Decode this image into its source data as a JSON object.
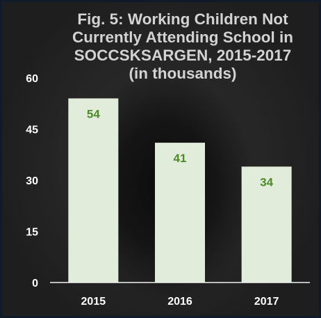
{
  "chart_data": {
    "type": "bar",
    "title_lines": [
      "Fig. 5: Working Children Not",
      "Currently Attending School in",
      "SOCCSKSARGEN, 2015-2017",
      "(in thousands)"
    ],
    "categories": [
      "2015",
      "2016",
      "2017"
    ],
    "values": [
      54,
      41,
      34
    ],
    "data_labels": [
      "54",
      "41",
      "34"
    ],
    "yticks": [
      0,
      15,
      30,
      45,
      60
    ],
    "ytick_labels": [
      "0",
      "15",
      "30",
      "45",
      "60"
    ],
    "ylim": [
      0,
      60
    ],
    "grid": false,
    "legend": "none",
    "colors": {
      "bar": "#e2ecda",
      "data_label": "#4f8a2a",
      "axis": "#f2f2f2",
      "text": "#ffffff",
      "title": "#d3d3d3"
    }
  }
}
